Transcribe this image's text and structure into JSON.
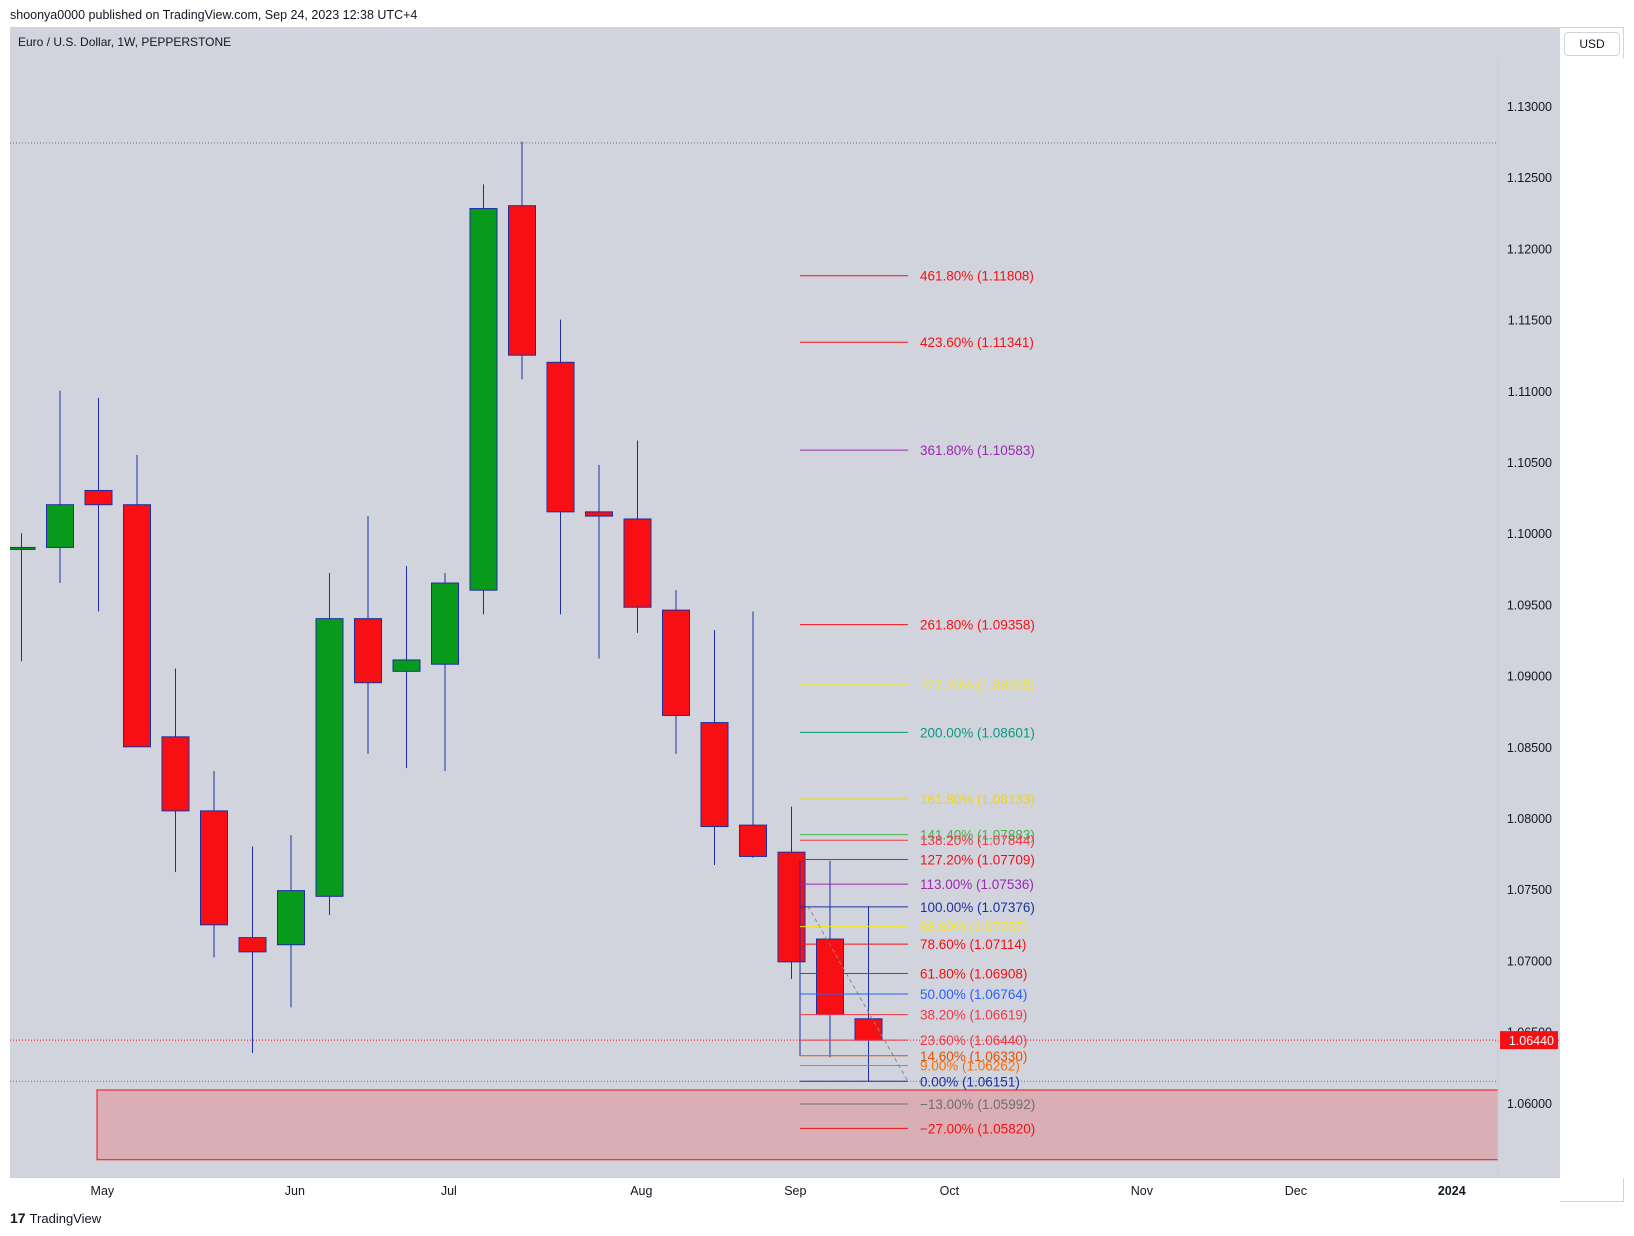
{
  "header": {
    "published_text": "shoonya0000 published on TradingView.com, Sep 24, 2023 12:38 UTC+4",
    "symbol_text": "Euro / U.S. Dollar, 1W, PEPPERSTONE",
    "currency_button": "USD"
  },
  "footer": {
    "brand_name": "TradingView",
    "logo_glyph": "17"
  },
  "colors": {
    "bull": "#089a1b",
    "bear": "#f70f14",
    "wick": "#1d2fa0",
    "background": "#d1d4dc",
    "zone": "#d9aeb5"
  },
  "current_price": {
    "value": 1.0644,
    "label": "1.06440",
    "color": "#f70f14"
  },
  "chart_data": {
    "type": "candlestick",
    "title": "Euro / U.S. Dollar, 1W, PEPPERSTONE",
    "ylim": [
      1.0558,
      1.1316
    ],
    "yticks": [
      {
        "v": 1.13,
        "label": "1.13000"
      },
      {
        "v": 1.125,
        "label": "1.12500"
      },
      {
        "v": 1.12,
        "label": "1.12000"
      },
      {
        "v": 1.115,
        "label": "1.11500"
      },
      {
        "v": 1.11,
        "label": "1.11000"
      },
      {
        "v": 1.105,
        "label": "1.10500"
      },
      {
        "v": 1.1,
        "label": "1.10000"
      },
      {
        "v": 1.095,
        "label": "1.09500"
      },
      {
        "v": 1.09,
        "label": "1.09000"
      },
      {
        "v": 1.085,
        "label": "1.08500"
      },
      {
        "v": 1.08,
        "label": "1.08000"
      },
      {
        "v": 1.075,
        "label": "1.07500"
      },
      {
        "v": 1.07,
        "label": "1.07000"
      },
      {
        "v": 1.065,
        "label": "1.06500"
      },
      {
        "v": 1.06,
        "label": "1.06000"
      }
    ],
    "xticks": [
      {
        "w": 2.1,
        "label": "May",
        "bold": false
      },
      {
        "w": 7.1,
        "label": "Jun",
        "bold": false
      },
      {
        "w": 11.1,
        "label": "Jul",
        "bold": false
      },
      {
        "w": 16.1,
        "label": "Aug",
        "bold": false
      },
      {
        "w": 20.1,
        "label": "Sep",
        "bold": false
      },
      {
        "w": 24.1,
        "label": "Oct",
        "bold": false
      },
      {
        "w": 29.1,
        "label": "Nov",
        "bold": false
      },
      {
        "w": 33.1,
        "label": "Dec",
        "bold": false
      },
      {
        "w": 37.15,
        "label": "2024",
        "bold": true
      }
    ],
    "candles": [
      {
        "o": 1.099,
        "h": 1.1,
        "l": 1.091,
        "c": 1.099
      },
      {
        "o": 1.099,
        "h": 1.11,
        "l": 1.0965,
        "c": 1.102
      },
      {
        "o": 1.103,
        "h": 1.1095,
        "l": 1.0945,
        "c": 1.102
      },
      {
        "o": 1.102,
        "h": 1.1055,
        "l": 1.085,
        "c": 1.085
      },
      {
        "o": 1.0857,
        "h": 1.0905,
        "l": 1.0762,
        "c": 1.0805
      },
      {
        "o": 1.0805,
        "h": 1.0833,
        "l": 1.0702,
        "c": 1.0725
      },
      {
        "o": 1.0716,
        "h": 1.078,
        "l": 1.0635,
        "c": 1.0706
      },
      {
        "o": 1.0711,
        "h": 1.0788,
        "l": 1.0667,
        "c": 1.0749
      },
      {
        "o": 1.0745,
        "h": 1.0972,
        "l": 1.0732,
        "c": 1.094
      },
      {
        "o": 1.094,
        "h": 1.1012,
        "l": 1.0845,
        "c": 1.0895
      },
      {
        "o": 1.0903,
        "h": 1.0977,
        "l": 1.0835,
        "c": 1.0911
      },
      {
        "o": 1.0908,
        "h": 1.0972,
        "l": 1.0833,
        "c": 1.0965
      },
      {
        "o": 1.096,
        "h": 1.1245,
        "l": 1.0943,
        "c": 1.1228
      },
      {
        "o": 1.123,
        "h": 1.1275,
        "l": 1.1108,
        "c": 1.1125
      },
      {
        "o": 1.112,
        "h": 1.115,
        "l": 1.0943,
        "c": 1.1015
      },
      {
        "o": 1.1015,
        "h": 1.1048,
        "l": 1.0912,
        "c": 1.1012
      },
      {
        "o": 1.101,
        "h": 1.1065,
        "l": 1.093,
        "c": 1.0948
      },
      {
        "o": 1.0946,
        "h": 1.096,
        "l": 1.0845,
        "c": 1.0872
      },
      {
        "o": 1.0867,
        "h": 1.0932,
        "l": 1.0767,
        "c": 1.0794
      },
      {
        "o": 1.0795,
        "h": 1.0945,
        "l": 1.0772,
        "c": 1.0773
      },
      {
        "o": 1.0776,
        "h": 1.0808,
        "l": 1.0687,
        "c": 1.0699
      },
      {
        "o": 1.0715,
        "h": 1.077,
        "l": 1.0632,
        "c": 1.0662
      },
      {
        "o": 1.0659,
        "h": 1.0738,
        "l": 1.0615,
        "c": 1.0644
      }
    ],
    "fib_levels": [
      {
        "pct": "461.80%",
        "value": 1.11808,
        "label": "461.80% (1.11808)",
        "color": "#f70f14"
      },
      {
        "pct": "423.60%",
        "value": 1.11341,
        "label": "423.60% (1.11341)",
        "color": "#f70f14"
      },
      {
        "pct": "361.80%",
        "value": 1.10583,
        "label": "361.80% (1.10583)",
        "color": "#9c27b0"
      },
      {
        "pct": "261.80%",
        "value": 1.09358,
        "label": "261.80% (1.09358)",
        "color": "#f70f14"
      },
      {
        "pct": "227.20%",
        "value": 1.08935,
        "label": "227.20% (1.08935)",
        "color": "#f2e527"
      },
      {
        "pct": "200.00%",
        "value": 1.08601,
        "label": "200.00% (1.08601)",
        "color": "#089981"
      },
      {
        "pct": "161.80%",
        "value": 1.08133,
        "label": "161.80% (1.08133)",
        "color": "#f2d70b"
      },
      {
        "pct": "141.40%",
        "value": 1.07883,
        "label": "141.40% (1.07883)",
        "color": "#4caf50"
      },
      {
        "pct": "138.20%",
        "value": 1.07844,
        "label": "138.20% (1.07844)",
        "color": "#f23645"
      },
      {
        "pct": "127.20%",
        "value": 1.07709,
        "label": "127.20% (1.07709)",
        "color": "#f70f14"
      },
      {
        "pct": "113.00%",
        "value": 1.07536,
        "label": "113.00% (1.07536)",
        "color": "#9c27b0"
      },
      {
        "pct": "100.00%",
        "value": 1.07376,
        "label": "100.00% (1.07376)",
        "color": "#1d2fa0"
      },
      {
        "pct": "88.60%",
        "value": 1.07237,
        "label": "88.60% (1.07237)",
        "color": "#f2e527"
      },
      {
        "pct": "78.60%",
        "value": 1.07114,
        "label": "78.60% (1.07114)",
        "color": "#f70f14"
      },
      {
        "pct": "61.80%",
        "value": 1.06908,
        "label": "61.80% (1.06908)",
        "color": "#f70f14"
      },
      {
        "pct": "50.00%",
        "value": 1.06764,
        "label": "50.00% (1.06764)",
        "color": "#2962ff"
      },
      {
        "pct": "38.20%",
        "value": 1.06619,
        "label": "38.20% (1.06619)",
        "color": "#f23645"
      },
      {
        "pct": "23.60%",
        "value": 1.0644,
        "label": "23.60% (1.06440)",
        "color": "#f23645"
      },
      {
        "pct": "14.60%",
        "value": 1.0633,
        "label": "14.60% (1.06330)",
        "color": "#e65100"
      },
      {
        "pct": "9.00%",
        "value": 1.06262,
        "label": "9.00% (1.06262)",
        "color": "#ff6d00"
      },
      {
        "pct": "0.00%",
        "value": 1.06151,
        "label": "0.00% (1.06151)",
        "color": "#1d2fa0"
      },
      {
        "pct": "-13.00%",
        "value": 1.05992,
        "label": "−13.00% (1.05992)",
        "color": "#6e6e6e"
      },
      {
        "pct": "-27.00%",
        "value": 1.0582,
        "label": "−27.00% (1.05820)",
        "color": "#f70f14"
      }
    ],
    "demand_zone": {
      "top": 1.0609,
      "bottom": 1.056,
      "color": "#d9aeb5"
    },
    "high_line": 1.1274,
    "low_line": 1.06151
  }
}
